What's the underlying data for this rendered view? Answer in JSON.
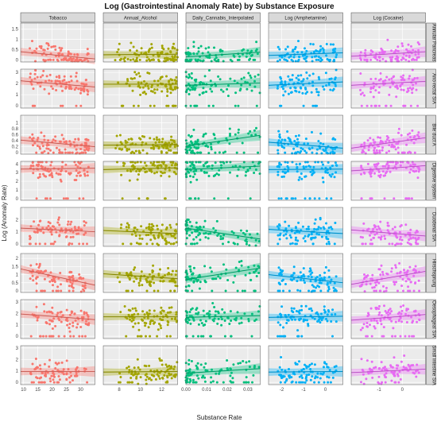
{
  "chart_data": {
    "type": "scatter",
    "title": "Log (Gastrointestinal Anomaly Rate) by Substance Exposure",
    "xlabel": "Substance Rate",
    "ylabel": "Log (Anomaly Rate)",
    "facet_cols": [
      {
        "name": "Tobacco",
        "color": "#f8766d",
        "xlim": [
          9,
          35
        ],
        "ticks": [
          10,
          15,
          20,
          25,
          30
        ]
      },
      {
        "name": "Annual_Alcohol",
        "color": "#a3a500",
        "xlim": [
          6.5,
          13.5
        ],
        "ticks": [
          8,
          10,
          12
        ]
      },
      {
        "name": "Daily_Cannabis_Interpolated",
        "color": "#00bf7d",
        "xlim": [
          0,
          0.036
        ],
        "ticks": [
          0.0,
          0.01,
          0.02,
          0.03
        ]
      },
      {
        "name": "Log (Amphetamine)",
        "color": "#00b0f6",
        "xlim": [
          -2.6,
          0.8
        ],
        "ticks": [
          -2,
          -1,
          0
        ]
      },
      {
        "name": "Log (Cocaine)",
        "color": "#e76bf3",
        "xlim": [
          -2.2,
          1.0
        ],
        "ticks": [
          -1,
          0
        ]
      }
    ],
    "facet_rows": [
      {
        "name": "Annular Pancreas",
        "ylim": [
          -0.1,
          1.8
        ],
        "ticks": [
          0.0,
          0.5,
          1.0,
          1.5
        ]
      },
      {
        "name": "Ano-rectal SIA",
        "ylim": [
          -0.2,
          3.3
        ],
        "ticks": [
          0,
          1,
          2,
          3
        ]
      },
      {
        "name": "Bile duct A",
        "ylim": [
          -0.05,
          1.25
        ],
        "ticks": [
          0.0,
          0.2,
          0.4,
          0.6,
          0.8,
          1.0
        ]
      },
      {
        "name": "Digestive system",
        "ylim": [
          -0.2,
          4.3
        ],
        "ticks": [
          0,
          1,
          2,
          3,
          4
        ]
      },
      {
        "name": "Duodenal SIA",
        "ylim": [
          -0.2,
          3.0
        ],
        "ticks": [
          0,
          1,
          2
        ]
      },
      {
        "name": "Hirschsprung",
        "ylim": [
          -0.1,
          2.3
        ],
        "ticks": [
          0.0,
          0.5,
          1.0,
          1.5,
          2.0
        ]
      },
      {
        "name": "Oesophageal SIA",
        "ylim": [
          -0.2,
          3.2
        ],
        "ticks": [
          0,
          1,
          2,
          3
        ]
      },
      {
        "name": "Small intestine SIA",
        "ylim": [
          -0.2,
          3.2
        ],
        "ticks": [
          0,
          1,
          2,
          3
        ]
      }
    ],
    "trend_lines": [
      [
        [
          0.4,
          0.05
        ],
        [
          0.25,
          0.28
        ],
        [
          0.15,
          0.38
        ],
        [
          0.22,
          0.35
        ],
        [
          0.18,
          0.4
        ]
      ],
      [
        [
          2.25,
          1.7
        ],
        [
          1.95,
          1.95
        ],
        [
          1.85,
          2.05
        ],
        [
          1.85,
          2.15
        ],
        [
          1.85,
          2.2
        ]
      ],
      [
        [
          0.42,
          0.2
        ],
        [
          0.25,
          0.27
        ],
        [
          0.22,
          0.58
        ],
        [
          0.35,
          0.15
        ],
        [
          0.15,
          0.5
        ]
      ],
      [
        [
          3.4,
          3.5
        ],
        [
          3.35,
          3.55
        ],
        [
          3.35,
          3.75
        ],
        [
          3.35,
          3.4
        ],
        [
          3.2,
          3.8
        ]
      ],
      [
        [
          1.3,
          1.0
        ],
        [
          1.1,
          0.85
        ],
        [
          1.3,
          0.4
        ],
        [
          1.2,
          0.85
        ],
        [
          1.15,
          0.65
        ]
      ],
      [
        [
          1.35,
          0.35
        ],
        [
          1.05,
          0.75
        ],
        [
          0.7,
          1.4
        ],
        [
          1.0,
          0.5
        ],
        [
          0.4,
          1.2
        ]
      ],
      [
        [
          1.95,
          1.45
        ],
        [
          1.7,
          1.7
        ],
        [
          1.65,
          1.8
        ],
        [
          1.65,
          1.75
        ],
        [
          1.4,
          1.9
        ]
      ],
      [
        [
          0.95,
          0.95
        ],
        [
          0.9,
          0.95
        ],
        [
          0.8,
          1.2
        ],
        [
          0.9,
          0.95
        ],
        [
          0.85,
          1.15
        ]
      ]
    ],
    "points_per_panel": 90,
    "grid": true,
    "panel_background": "#ebebeb",
    "strip_background": "#d9d9d9"
  }
}
